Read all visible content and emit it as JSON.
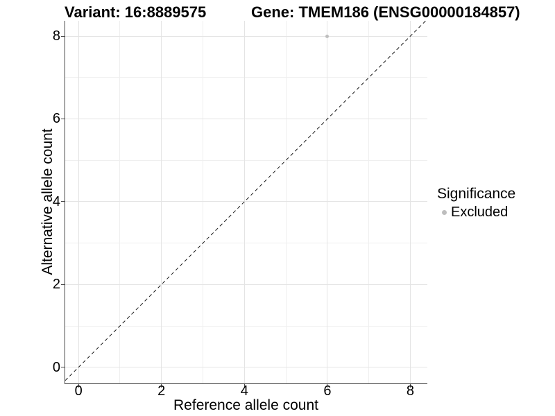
{
  "chart_data": {
    "type": "scatter",
    "title_left": "Variant: 16:8889575",
    "title_right": "Gene: TMEM186 (ENSG00000184857)",
    "xlabel": "Reference allele count",
    "ylabel": "Alternative allele count",
    "xlim": [
      -0.32,
      8.41
    ],
    "ylim": [
      -0.39,
      8.37
    ],
    "x_ticks": [
      0,
      2,
      4,
      6,
      8
    ],
    "y_ticks": [
      0,
      2,
      4,
      6,
      8
    ],
    "x_minor": [
      1,
      3,
      5,
      7
    ],
    "y_minor": [
      1,
      3,
      5,
      7
    ],
    "grid": true,
    "reference_line": {
      "slope": 1,
      "intercept": 0,
      "style": "dashed",
      "color": "#1a1a1a"
    },
    "series": [
      {
        "name": "Excluded",
        "color": "#bebebe",
        "points": [
          {
            "x": 6,
            "y": 8
          }
        ]
      }
    ],
    "legend": {
      "title": "Significance",
      "position": "right",
      "items": [
        {
          "label": "Excluded",
          "color": "#bebebe"
        }
      ]
    },
    "colors": {
      "major_grid": "#e4e4e4",
      "minor_grid": "#efefef",
      "axis_line": "#474747",
      "point": "#bebebe",
      "text": "#000000",
      "background": "#ffffff"
    }
  }
}
